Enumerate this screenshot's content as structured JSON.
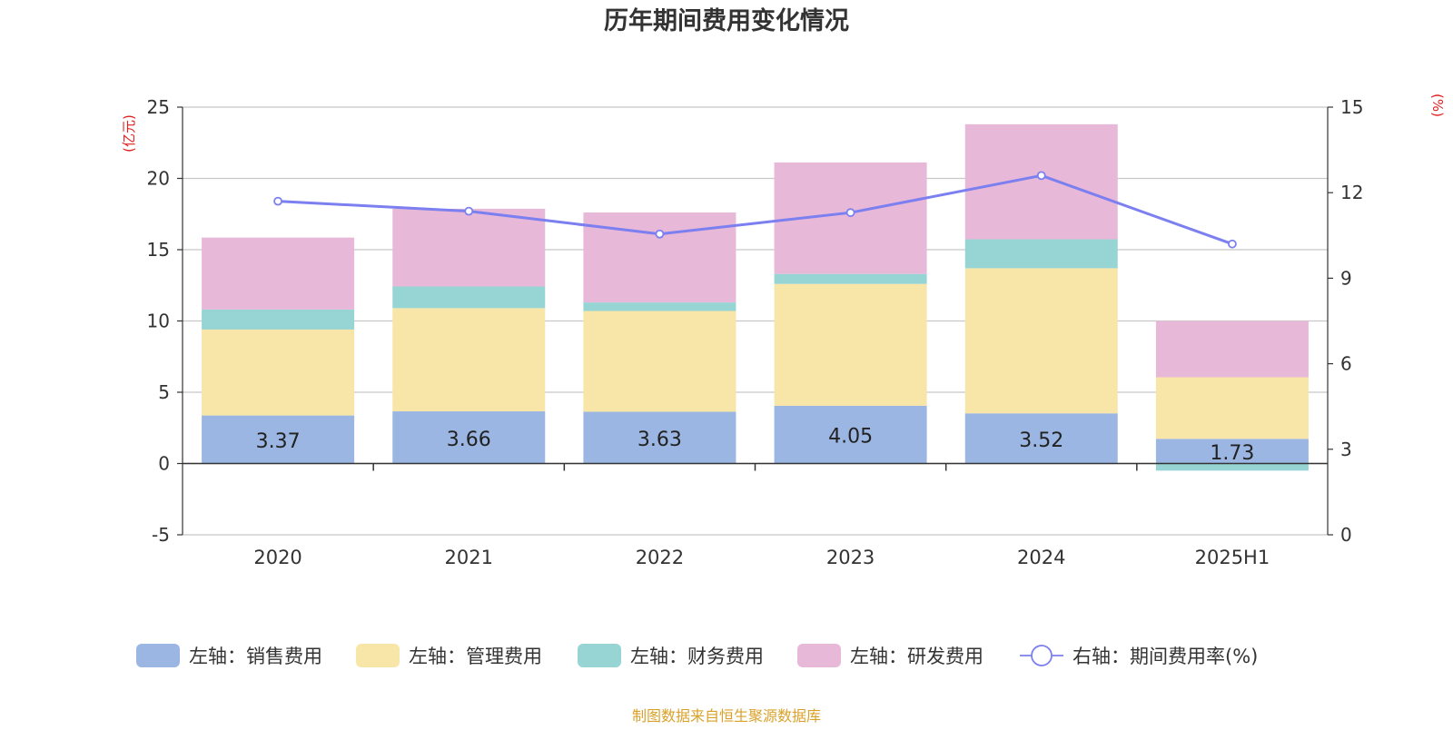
{
  "chart_data": {
    "type": "bar",
    "title": "历年期间费用变化情况",
    "y_left_label": "(亿元)",
    "y_right_label": "(%)",
    "categories": [
      "2020",
      "2021",
      "2022",
      "2023",
      "2024",
      "2025H1"
    ],
    "y_left_ticks": [
      "25",
      "20",
      "15",
      "10",
      "5",
      "0",
      "-5"
    ],
    "y_left_range": [
      -5,
      25
    ],
    "y_right_ticks": [
      "15",
      "12",
      "9",
      "6",
      "3",
      "0"
    ],
    "y_right_range": [
      0,
      15
    ],
    "grid": true,
    "stacked": true,
    "series": [
      {
        "name": "左轴：销售费用",
        "type": "bar",
        "color": "#9bb6e2",
        "values": [
          3.37,
          3.66,
          3.63,
          4.05,
          3.52,
          1.73
        ],
        "labels": [
          "3.37",
          "3.66",
          "3.63",
          "4.05",
          "3.52",
          "1.73"
        ]
      },
      {
        "name": "左轴：管理费用",
        "type": "bar",
        "color": "#f8e6a8",
        "values": [
          6.03,
          7.24,
          7.07,
          8.55,
          10.18,
          4.32
        ]
      },
      {
        "name": "左轴：财务费用",
        "type": "bar",
        "color": "#97d4d4",
        "values": [
          1.4,
          1.52,
          0.6,
          0.7,
          2.03,
          -0.5
        ]
      },
      {
        "name": "左轴：研发费用",
        "type": "bar",
        "color": "#e8b8d8",
        "values": [
          5.05,
          5.45,
          6.31,
          7.82,
          8.07,
          3.95
        ]
      },
      {
        "name": "右轴：期间费用率(%)",
        "type": "line",
        "axis": "right",
        "color": "#7b7ff0",
        "values": [
          11.7,
          11.35,
          10.55,
          11.3,
          12.6,
          10.2
        ]
      }
    ]
  },
  "source_note": "制图数据来自恒生聚源数据库"
}
